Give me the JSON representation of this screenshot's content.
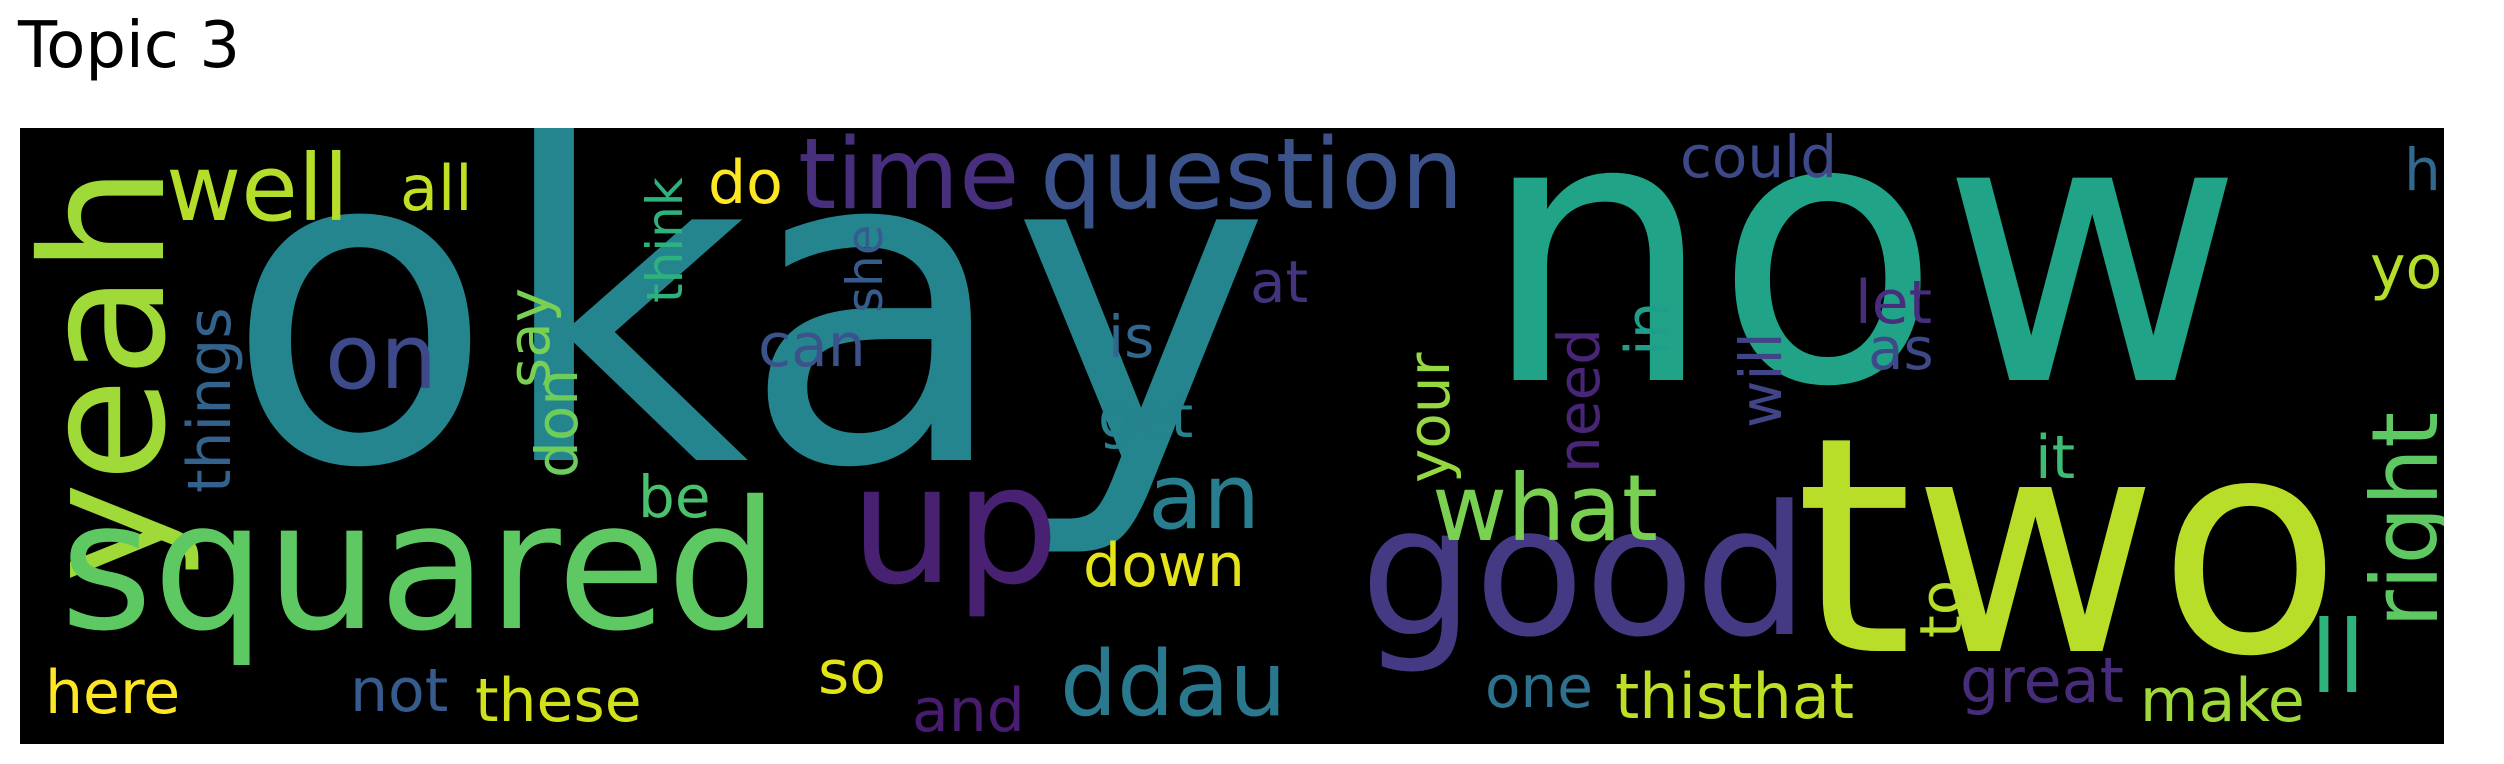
{
  "title": "Topic 3",
  "words": [
    {
      "text": "okay",
      "color": "#25858e",
      "vertical": false
    },
    {
      "text": "now",
      "color": "#20a386",
      "vertical": false
    },
    {
      "text": "two",
      "color": "#b8de29",
      "vertical": false
    },
    {
      "text": "yeah",
      "color": "#a0da39",
      "vertical": true
    },
    {
      "text": "squared",
      "color": "#5ec962",
      "vertical": false
    },
    {
      "text": "good",
      "color": "#443983",
      "vertical": false
    },
    {
      "text": "up",
      "color": "#482173",
      "vertical": false
    },
    {
      "text": "question",
      "color": "#3b528b",
      "vertical": false
    },
    {
      "text": "time",
      "color": "#472f7d",
      "vertical": false
    },
    {
      "text": "well",
      "color": "#b5de2b",
      "vertical": false
    },
    {
      "text": "ddau",
      "color": "#2a788e",
      "vertical": false
    },
    {
      "text": "an",
      "color": "#287d8e",
      "vertical": false
    },
    {
      "text": "what",
      "color": "#7ad151",
      "vertical": false
    },
    {
      "text": "on",
      "color": "#3e4989",
      "vertical": false
    },
    {
      "text": "right",
      "color": "#5ec962",
      "vertical": true
    },
    {
      "text": "ll",
      "color": "#2eb37c",
      "vertical": false
    },
    {
      "text": "all",
      "color": "#c2df23",
      "vertical": false
    },
    {
      "text": "here",
      "color": "#fde725",
      "vertical": false
    },
    {
      "text": "these",
      "color": "#d0e11c",
      "vertical": false
    },
    {
      "text": "make",
      "color": "#9fda3a",
      "vertical": false
    },
    {
      "text": "thisthat",
      "color": "#bddf26",
      "vertical": false
    },
    {
      "text": "great",
      "color": "#472c7a",
      "vertical": false
    },
    {
      "text": "down",
      "color": "#e5e419",
      "vertical": false
    },
    {
      "text": "do",
      "color": "#fde725",
      "vertical": false
    },
    {
      "text": "not",
      "color": "#375b8d",
      "vertical": false
    },
    {
      "text": "and",
      "color": "#481d6f",
      "vertical": false
    },
    {
      "text": "so",
      "color": "#e2e418",
      "vertical": false
    },
    {
      "text": "one",
      "color": "#2c728e",
      "vertical": false
    },
    {
      "text": "can",
      "color": "#3b528b",
      "vertical": false
    },
    {
      "text": "you",
      "color": "#b5de2b",
      "vertical": false
    },
    {
      "text": "he",
      "color": "#31688e",
      "vertical": false
    },
    {
      "text": "could",
      "color": "#3e4989",
      "vertical": false
    },
    {
      "text": "get",
      "color": "#26828e",
      "vertical": false
    },
    {
      "text": "is",
      "color": "#31688e",
      "vertical": false
    },
    {
      "text": "at",
      "color": "#46337f",
      "vertical": false
    },
    {
      "text": "let",
      "color": "#472d7b",
      "vertical": false
    },
    {
      "text": "as",
      "color": "#3e4989",
      "vertical": false
    },
    {
      "text": "it",
      "color": "#3dbc74",
      "vertical": false
    },
    {
      "text": "be",
      "color": "#4ac16d",
      "vertical": false
    },
    {
      "text": "things",
      "color": "#33638d",
      "vertical": true
    },
    {
      "text": "say",
      "color": "#7ad151",
      "vertical": true
    },
    {
      "text": "don",
      "color": "#6ccd5a",
      "vertical": true
    },
    {
      "text": "think",
      "color": "#2db27d",
      "vertical": true
    },
    {
      "text": "she",
      "color": "#365c8d",
      "vertical": true
    },
    {
      "text": "your",
      "color": "#95d840",
      "vertical": true
    },
    {
      "text": "need",
      "color": "#482576",
      "vertical": true
    },
    {
      "text": "in",
      "color": "#1f9e89",
      "vertical": true
    },
    {
      "text": "will",
      "color": "#414487",
      "vertical": true
    },
    {
      "text": "to",
      "color": "#b5de2b",
      "vertical": true
    }
  ]
}
